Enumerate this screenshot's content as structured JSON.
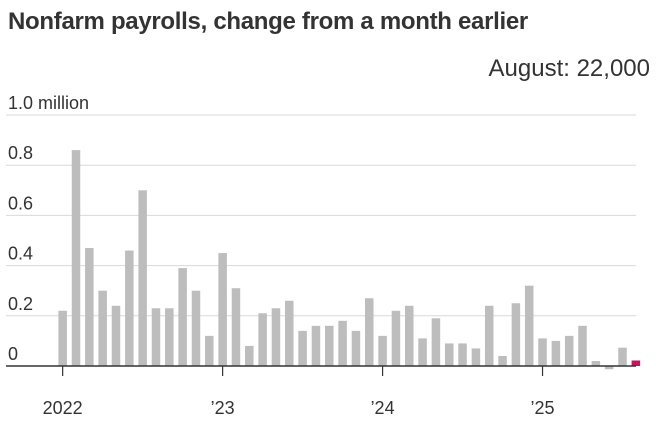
{
  "title": "Nonfarm payrolls, change from a month earlier",
  "annotation": "August: 22,000",
  "colors": {
    "bar": "#bdbdbd",
    "highlight": "#c2185b",
    "grid": "#d9d9d9",
    "axis": "#333333"
  },
  "chart_data": {
    "type": "bar",
    "title": "Nonfarm payrolls, change from a month earlier",
    "unit": "million",
    "ylim": [
      0,
      1.0
    ],
    "y_ticks": [
      {
        "value": 1.0,
        "label": "1.0 million"
      },
      {
        "value": 0.8,
        "label": "0.8"
      },
      {
        "value": 0.6,
        "label": "0.6"
      },
      {
        "value": 0.4,
        "label": "0.4"
      },
      {
        "value": 0.2,
        "label": "0.2"
      },
      {
        "value": 0,
        "label": "0"
      }
    ],
    "x_ticks": [
      {
        "index": 0,
        "label": "2022"
      },
      {
        "index": 12,
        "label": "’23"
      },
      {
        "index": 24,
        "label": "’24"
      },
      {
        "index": 36,
        "label": "’25"
      }
    ],
    "grid": true,
    "categories": [
      "2022-01",
      "2022-02",
      "2022-03",
      "2022-04",
      "2022-05",
      "2022-06",
      "2022-07",
      "2022-08",
      "2022-09",
      "2022-10",
      "2022-11",
      "2022-12",
      "2023-01",
      "2023-02",
      "2023-03",
      "2023-04",
      "2023-05",
      "2023-06",
      "2023-07",
      "2023-08",
      "2023-09",
      "2023-10",
      "2023-11",
      "2023-12",
      "2024-01",
      "2024-02",
      "2024-03",
      "2024-04",
      "2024-05",
      "2024-06",
      "2024-07",
      "2024-08",
      "2024-09",
      "2024-10",
      "2024-11",
      "2024-12",
      "2025-01",
      "2025-02",
      "2025-03",
      "2025-04",
      "2025-05",
      "2025-06",
      "2025-07",
      "2025-08"
    ],
    "values": [
      0.22,
      0.86,
      0.47,
      0.3,
      0.24,
      0.46,
      0.7,
      0.23,
      0.23,
      0.39,
      0.3,
      0.12,
      0.45,
      0.31,
      0.08,
      0.21,
      0.23,
      0.26,
      0.14,
      0.16,
      0.16,
      0.18,
      0.14,
      0.27,
      0.12,
      0.22,
      0.24,
      0.11,
      0.19,
      0.09,
      0.09,
      0.07,
      0.24,
      0.04,
      0.25,
      0.32,
      0.11,
      0.1,
      0.12,
      0.16,
      0.02,
      -0.013,
      0.073,
      0.022
    ],
    "highlight_index": 43
  }
}
